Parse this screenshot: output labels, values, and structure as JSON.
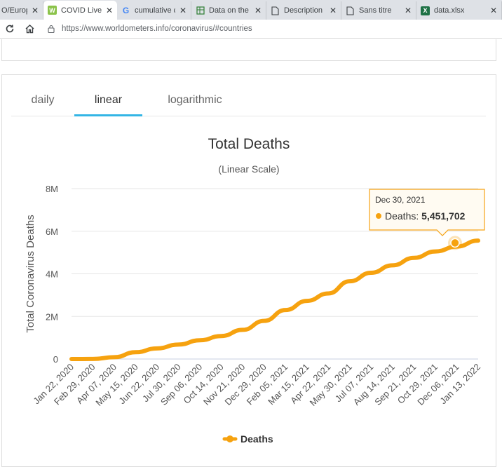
{
  "browser": {
    "tabs": [
      {
        "title": "O/Europe",
        "icon": "generic-page-icon"
      },
      {
        "title": "COVID Live -",
        "icon": "worldometer-icon",
        "active": true
      },
      {
        "title": "cumulative c",
        "icon": "google-icon"
      },
      {
        "title": "Data on the",
        "icon": "spreadsheet-page-icon"
      },
      {
        "title": "Description",
        "icon": "document-icon"
      },
      {
        "title": "Sans titre",
        "icon": "document-icon"
      },
      {
        "title": "data.xlsx",
        "icon": "excel-icon"
      }
    ],
    "url": "https://www.worldometers.info/coronavirus/#countries"
  },
  "chart_tabs": [
    {
      "label": "daily",
      "active": false
    },
    {
      "label": "linear",
      "active": true
    },
    {
      "label": "logarithmic",
      "active": false
    }
  ],
  "chart_data": {
    "type": "line",
    "title": "Total Deaths",
    "subtitle": "(Linear Scale)",
    "ylabel": "Total Coronavirus Deaths",
    "xlabel": "",
    "ylim": [
      0,
      8000000
    ],
    "yticks": [
      "0",
      "2M",
      "4M",
      "6M",
      "8M"
    ],
    "ytick_values": [
      0,
      2000000,
      4000000,
      6000000,
      8000000
    ],
    "categories": [
      "Jan 22, 2020",
      "Feb 29, 2020",
      "Apr 07, 2020",
      "May 15, 2020",
      "Jun 22, 2020",
      "Jul 30, 2020",
      "Sep 06, 2020",
      "Oct 14, 2020",
      "Nov 21, 2020",
      "Dec 29, 2020",
      "Feb 05, 2021",
      "Mar 15, 2021",
      "Apr 22, 2021",
      "May 30, 2021",
      "Jul 07, 2021",
      "Aug 14, 2021",
      "Sep 21, 2021",
      "Oct 29, 2021",
      "Dec 06, 2021",
      "Jan 13, 2022"
    ],
    "grid": true,
    "legend_position": "bottom",
    "color": "#f6a20f",
    "series": [
      {
        "name": "Deaths",
        "values": [
          17,
          3000,
          85000,
          320000,
          500000,
          680000,
          880000,
          1080000,
          1370000,
          1790000,
          2300000,
          2730000,
          3080000,
          3650000,
          4050000,
          4400000,
          4750000,
          5050000,
          5280000,
          5560000
        ]
      }
    ],
    "tooltip": {
      "date": "Dec 30, 2021",
      "series": "Deaths",
      "value": "5,451,702"
    }
  }
}
